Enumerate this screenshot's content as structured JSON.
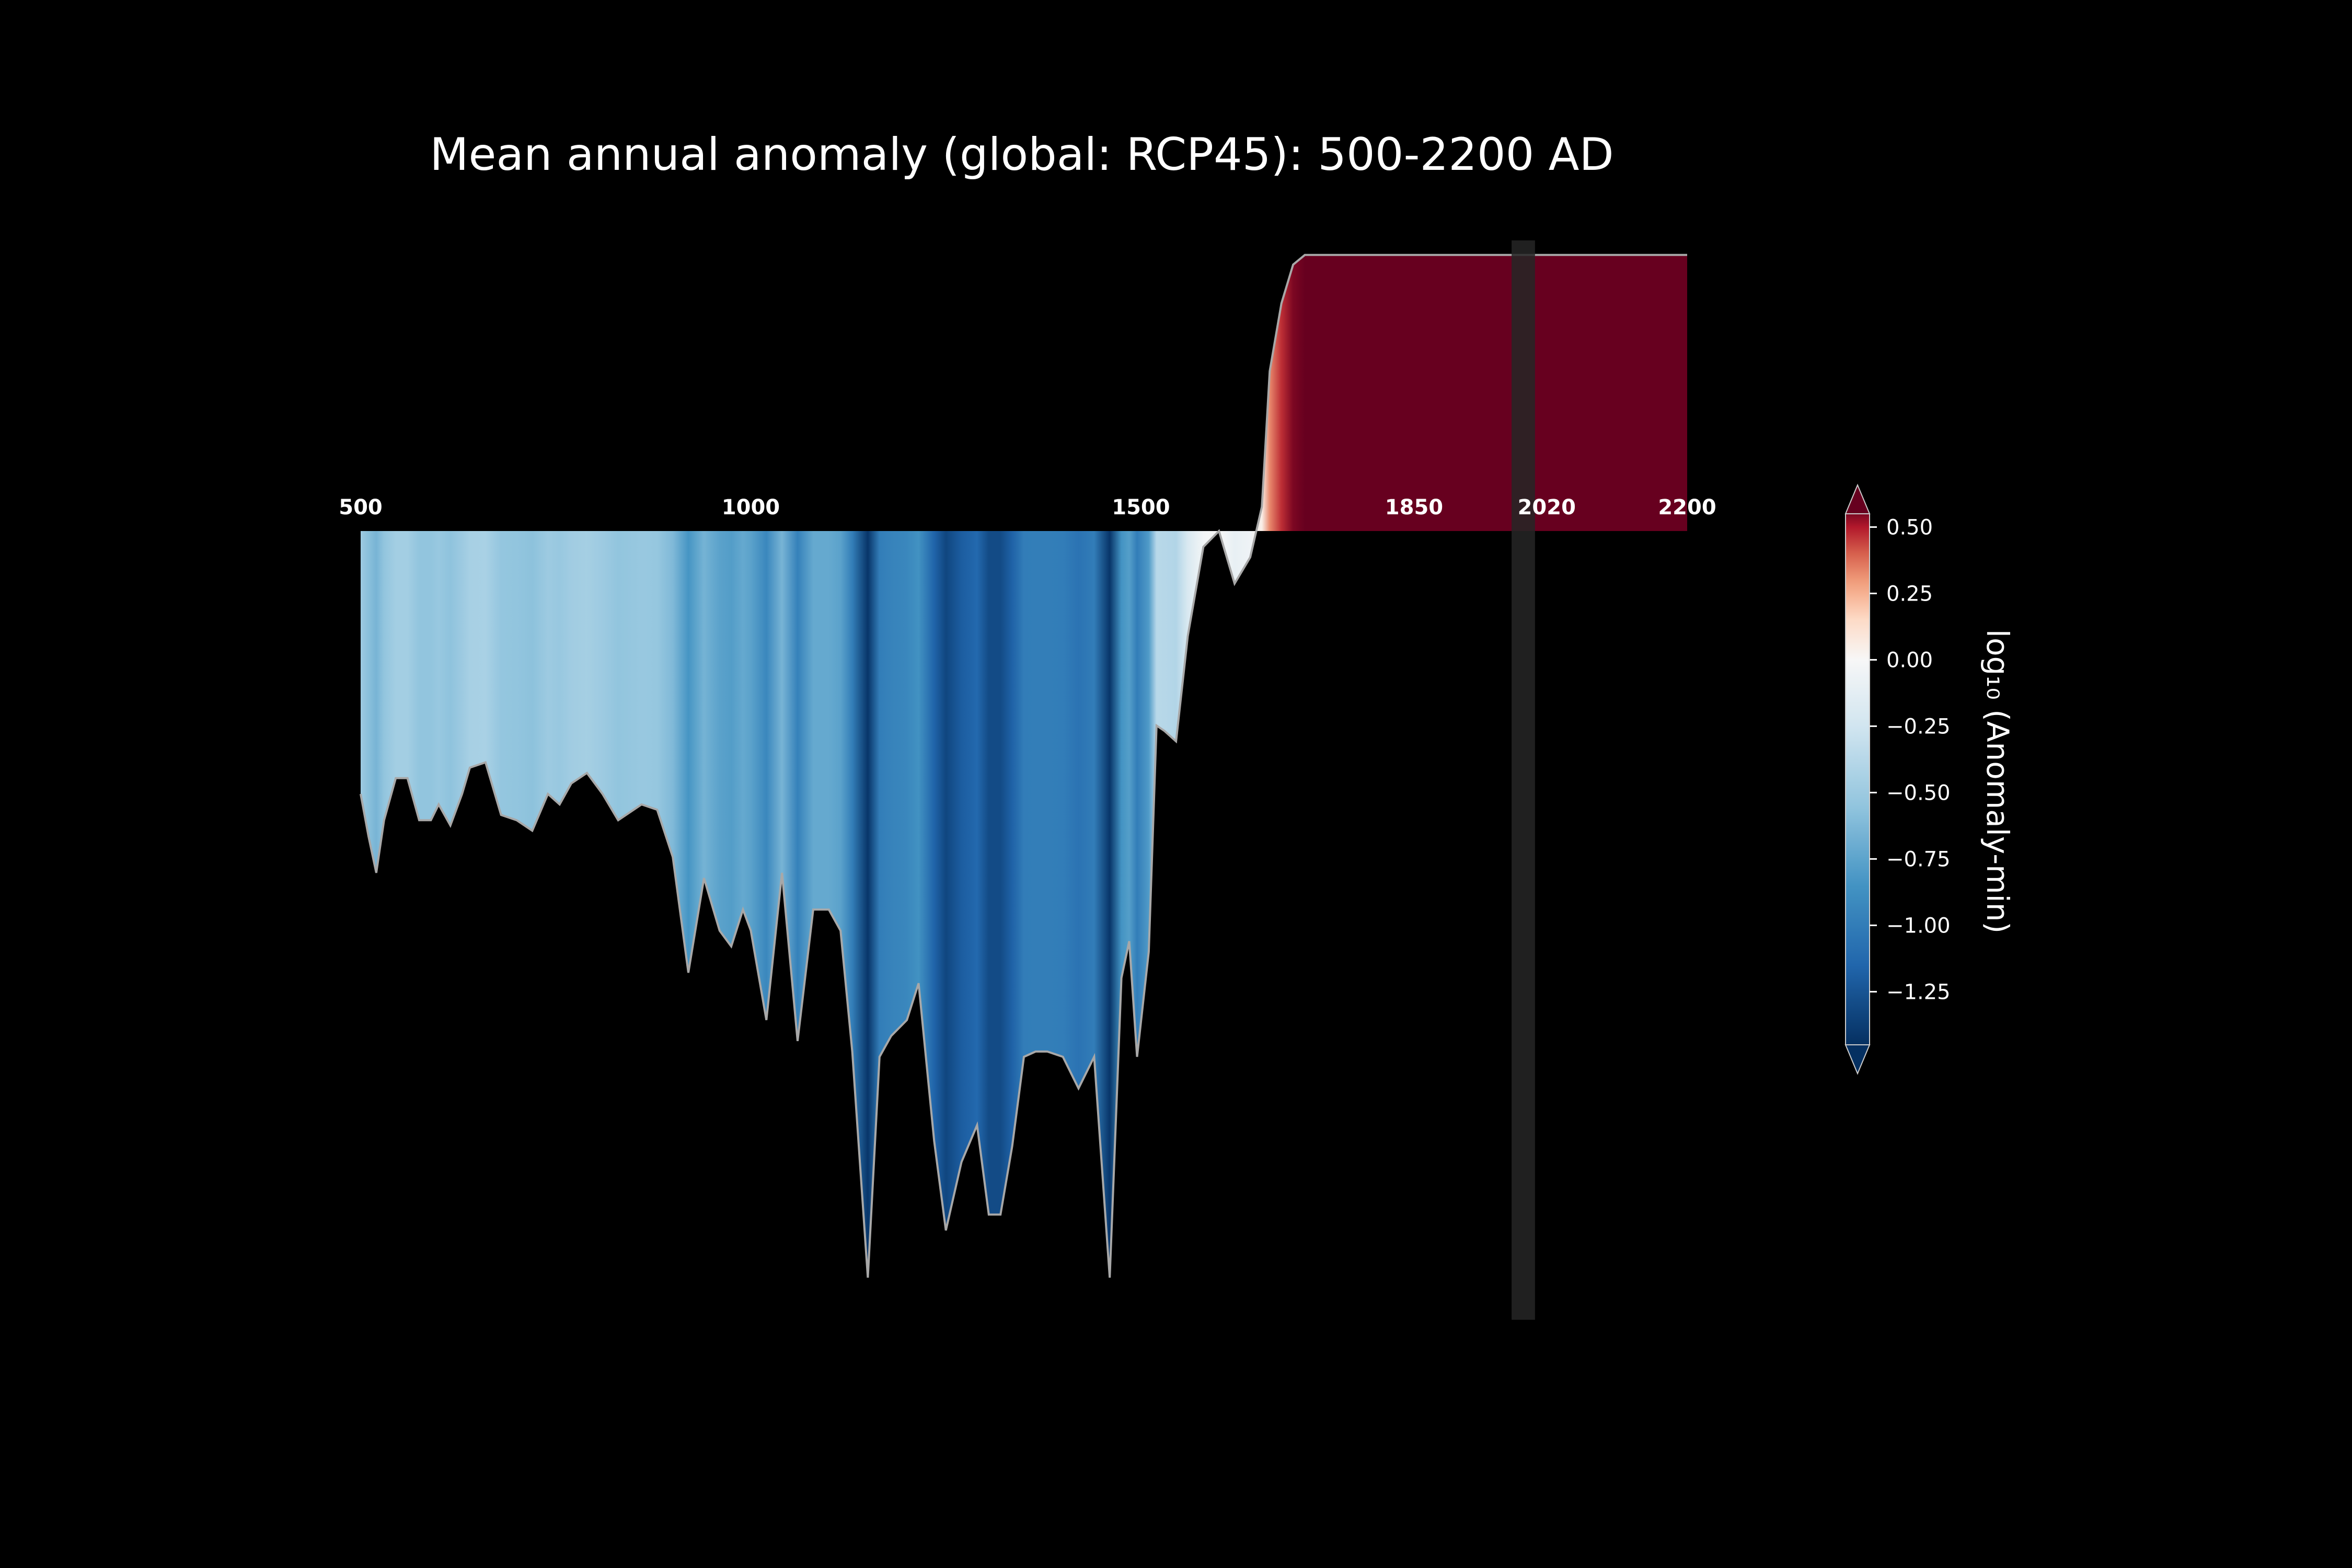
{
  "chart_data": {
    "type": "area",
    "title": "Mean annual anomaly (global: RCP45): 500-2200 AD",
    "xlabel": "",
    "ylabel": "",
    "x_ticks": [
      "500",
      "1000",
      "1500",
      "1850",
      "2020",
      "2200"
    ],
    "x_tick_values": [
      500,
      1000,
      1500,
      1850,
      2020,
      2200
    ],
    "xlim": [
      480,
      2200
    ],
    "ylim": [
      -1.5,
      0.6
    ],
    "shaded_band_years": [
      1975,
      2005
    ],
    "colorbar": {
      "label": "log₁₀ (Anomaly-min)",
      "ticks": [
        "0.50",
        "0.25",
        "0.00",
        "−0.25",
        "−0.50",
        "−0.75",
        "−1.00",
        "−1.25"
      ],
      "tick_values": [
        0.5,
        0.25,
        0.0,
        -0.25,
        -0.5,
        -0.75,
        -1.0,
        -1.25
      ],
      "range": [
        -1.45,
        0.55
      ],
      "colormap": "RdBu_r",
      "extend": "both"
    },
    "series": [
      {
        "x": [
          500,
          510,
          520,
          530,
          545,
          560,
          575,
          590,
          600,
          615,
          630,
          640,
          660,
          680,
          700,
          720,
          740,
          755,
          770,
          790,
          810,
          830,
          850,
          860,
          880,
          900,
          920,
          940,
          960,
          975,
          990,
          1000,
          1020,
          1040,
          1060,
          1080,
          1100,
          1115,
          1130,
          1150,
          1165,
          1180,
          1200,
          1215,
          1235,
          1250,
          1270,
          1290,
          1305,
          1320,
          1335,
          1350,
          1365,
          1380,
          1400,
          1420,
          1440,
          1460,
          1475,
          1485,
          1495,
          1510,
          1520,
          1530,
          1545,
          1560,
          1580,
          1600,
          1620,
          1640,
          1655,
          1665,
          1680,
          1695,
          1710,
          1730,
          1745,
          1760,
          1775,
          1790,
          1810,
          1825,
          1840,
          1850,
          1865,
          1875,
          1885,
          1895,
          1905,
          1915,
          1925,
          1935,
          1945,
          1955,
          1965,
          1975,
          1985,
          1995,
          2005,
          2015,
          2030,
          2045,
          2060,
          2080,
          2100,
          2120,
          2140,
          2160,
          2180,
          2200
        ],
        "values": [
          -0.5,
          -0.58,
          -0.65,
          -0.55,
          -0.47,
          -0.47,
          -0.55,
          -0.55,
          -0.52,
          -0.56,
          -0.5,
          -0.45,
          -0.44,
          -0.54,
          -0.55,
          -0.57,
          -0.5,
          -0.52,
          -0.48,
          -0.46,
          -0.5,
          -0.55,
          -0.53,
          -0.52,
          -0.53,
          -0.62,
          -0.84,
          -0.66,
          -0.76,
          -0.79,
          -0.72,
          -0.76,
          -0.93,
          -0.65,
          -0.97,
          -0.72,
          -0.72,
          -0.76,
          -0.99,
          -1.42,
          -1.0,
          -0.96,
          -0.93,
          -0.86,
          -1.16,
          -1.33,
          -1.2,
          -1.13,
          -1.3,
          -1.3,
          -1.17,
          -1.0,
          -0.99,
          -0.99,
          -1.0,
          -1.06,
          -1.0,
          -1.42,
          -0.85,
          -0.78,
          -1.0,
          -0.8,
          -0.37,
          -0.38,
          -0.4,
          -0.2,
          -0.03,
          -0.0,
          -0.1,
          -0.05,
          0.05,
          0.33,
          0.47,
          0.55,
          0.57,
          0.57,
          0.57,
          0.57,
          0.57,
          0.57,
          0.57,
          0.57,
          0.57,
          0.57,
          0.57,
          0.57,
          0.57,
          0.57,
          0.57,
          0.57,
          0.57,
          0.57,
          0.57,
          0.57,
          0.57,
          0.57,
          0.57,
          0.57,
          0.57,
          0.57,
          0.57,
          0.57,
          0.57,
          0.57,
          0.57,
          0.57,
          0.57,
          0.57,
          0.57,
          0.57
        ]
      }
    ]
  }
}
